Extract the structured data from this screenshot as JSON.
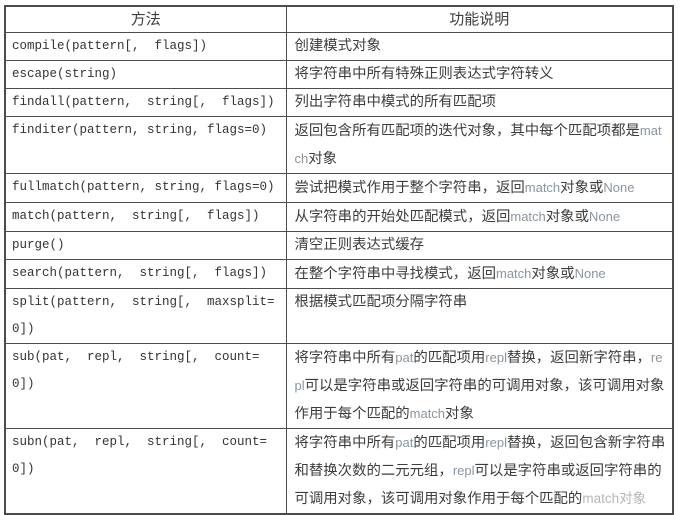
{
  "colors": {
    "text": "#3d3d3d",
    "latin_term": "#8a959e",
    "faded_watermarked": "#b6b6b6",
    "border": "#4c4c4c",
    "background": "#ffffff"
  },
  "table": {
    "headers": [
      {
        "label": "方法"
      },
      {
        "label": "功能说明"
      }
    ],
    "rows": [
      {
        "method": "compile(pattern[,  flags])",
        "desc": [
          {
            "t": "创建模式对象",
            "c": "zh"
          }
        ]
      },
      {
        "method": "escape(string)",
        "desc": [
          {
            "t": "将字符串中所有特殊正则表达式字符转义",
            "c": "zh"
          }
        ]
      },
      {
        "method": "findall(pattern,  string[,  flags])",
        "desc": [
          {
            "t": "列出字符串中模式的所有匹配项",
            "c": "zh"
          }
        ]
      },
      {
        "method": "finditer(pattern, string, flags=0)",
        "desc": [
          {
            "t": "返回包含所有匹配项的迭代对象，其中每个匹配项都是",
            "c": "zh"
          },
          {
            "t": "match",
            "c": "en"
          },
          {
            "t": "对象",
            "c": "zh"
          }
        ]
      },
      {
        "method": "fullmatch(pattern, string, flags=0)",
        "desc": [
          {
            "t": "尝试把模式作用于整个字符串，返回",
            "c": "zh"
          },
          {
            "t": "match",
            "c": "en"
          },
          {
            "t": "对象或",
            "c": "zh"
          },
          {
            "t": "None",
            "c": "en"
          }
        ]
      },
      {
        "method": "match(pattern,  string[,  flags])",
        "desc": [
          {
            "t": "从字符串的开始处匹配模式，返回",
            "c": "zh"
          },
          {
            "t": "match",
            "c": "en"
          },
          {
            "t": "对象或",
            "c": "zh"
          },
          {
            "t": "None",
            "c": "en"
          }
        ]
      },
      {
        "method": "purge()",
        "desc": [
          {
            "t": "清空正则表达式缓存",
            "c": "zh"
          }
        ]
      },
      {
        "method": "search(pattern,  string[,  flags])",
        "desc": [
          {
            "t": "在整个字符串中寻找模式，返回",
            "c": "zh"
          },
          {
            "t": "match",
            "c": "en"
          },
          {
            "t": "对象或",
            "c": "zh"
          },
          {
            "t": "None",
            "c": "en"
          }
        ]
      },
      {
        "method": "split(pattern,  string[,  maxsplit=0])",
        "desc": [
          {
            "t": "根据模式匹配项分隔字符串",
            "c": "zh"
          }
        ]
      },
      {
        "method": "sub(pat,  repl,  string[,  count=0])",
        "desc": [
          {
            "t": "将字符串中所有",
            "c": "zh"
          },
          {
            "t": "pat",
            "c": "en"
          },
          {
            "t": "的匹配项用",
            "c": "zh"
          },
          {
            "t": "repl",
            "c": "en"
          },
          {
            "t": "替换，返回新字符串，",
            "c": "zh"
          },
          {
            "t": "repl",
            "c": "en"
          },
          {
            "t": "可以是字符串或返回字符串的可调用对象，该可调用对象作用于每个匹配的",
            "c": "zh"
          },
          {
            "t": "match",
            "c": "en"
          },
          {
            "t": "对象",
            "c": "zh"
          }
        ]
      },
      {
        "method": "subn(pat,  repl,  string[,  count=0])",
        "desc": [
          {
            "t": "将字符串中所有",
            "c": "zh"
          },
          {
            "t": "pat",
            "c": "en"
          },
          {
            "t": "的匹配项用",
            "c": "zh"
          },
          {
            "t": "repl",
            "c": "en"
          },
          {
            "t": "替换，返回包含新字符串和替换次数的二元元组，",
            "c": "zh"
          },
          {
            "t": "repl",
            "c": "en"
          },
          {
            "t": "可以是字符串或返回字符串的可调用对象，该可调用对象作用于每个匹配的",
            "c": "zh"
          },
          {
            "t": "match对象",
            "c": "faded"
          }
        ]
      }
    ]
  }
}
